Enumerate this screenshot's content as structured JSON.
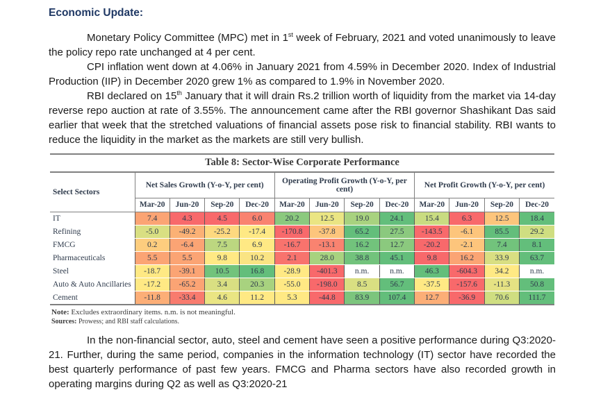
{
  "page": {
    "heading": "Economic Update:",
    "paragraphs": {
      "p1_pre": "Monetary Policy Committee (MPC) met in 1",
      "p1_sup": "st",
      "p1_post": " week of February, 2021 and voted unanimously to leave the policy repo rate unchanged at 4 per cent.",
      "p2": "CPI inflation went down at 4.06% in January 2021 from 4.59% in December 2020. Index of Industrial Production (IIP) in December 2020 grew 1% as compared to 1.9% in November 2020.",
      "p3_pre": "RBI declared on 15",
      "p3_sup": "th",
      "p3_post": " January that it will drain Rs.2 trillion worth of liquidity from the market via 14-day reverse repo auction at rate of 3.55%. The announcement came after the RBI governor Shashikant Das said earlier that week that the stretched valuations of financial assets pose risk to financial stability. RBI wants to reduce the liquidity in the market as the markets are still very bullish.",
      "p4": "In the non-financial sector, auto, steel and cement have seen a positive performance during Q3:2020-21. Further, during the same period, companies in the information technology (IT) sector have recorded the best quarterly performance of past few years. FMCG and Pharma sectors have also recorded growth in operating margins during Q2 as well as Q3:2020-21"
    }
  },
  "table": {
    "title": "Table 8: Sector-Wise Corporate Performance",
    "corner_label": "Select Sectors",
    "groups": [
      "Net Sales Growth (Y-o-Y, per cent)",
      "Operating Profit Growth (Y-o-Y, per cent)",
      "Net Profit Growth (Y-o-Y, per cent)"
    ],
    "quarters": [
      "Mar-20",
      "Jun-20",
      "Sep-20",
      "Dec-20"
    ],
    "rows": [
      {
        "label": "IT",
        "cells": [
          {
            "v": "7.4",
            "c": "#FBA474"
          },
          {
            "v": "4.3",
            "c": "#F8696B"
          },
          {
            "v": "4.5",
            "c": "#F8696B"
          },
          {
            "v": "6.0",
            "c": "#F98370"
          },
          {
            "v": "20.2",
            "c": "#8BC97E"
          },
          {
            "v": "12.5",
            "c": "#EAE583"
          },
          {
            "v": "19.0",
            "c": "#A8D27F"
          },
          {
            "v": "24.1",
            "c": "#63BE7B"
          },
          {
            "v": "15.4",
            "c": "#C9DC81"
          },
          {
            "v": "6.3",
            "c": "#F8696B"
          },
          {
            "v": "12.5",
            "c": "#FDC57C"
          },
          {
            "v": "18.4",
            "c": "#63BE7B"
          }
        ]
      },
      {
        "label": "Refining",
        "cells": [
          {
            "v": "-5.0",
            "c": "#D9DF82"
          },
          {
            "v": "-49.2",
            "c": "#FBB175"
          },
          {
            "v": "-25.2",
            "c": "#FDD97F"
          },
          {
            "v": "-17.4",
            "c": "#FFE984"
          },
          {
            "v": "-170.8",
            "c": "#F8696B"
          },
          {
            "v": "-37.8",
            "c": "#FDC57C"
          },
          {
            "v": "65.2",
            "c": "#63BE7B"
          },
          {
            "v": "27.5",
            "c": "#8BC97E"
          },
          {
            "v": "-143.5",
            "c": "#F8696B"
          },
          {
            "v": "-6.1",
            "c": "#FDC57C"
          },
          {
            "v": "85.5",
            "c": "#63BE7B"
          },
          {
            "v": "29.2",
            "c": "#CFDE81"
          }
        ]
      },
      {
        "label": "FMCG",
        "cells": [
          {
            "v": "0.2",
            "c": "#FDCD7E"
          },
          {
            "v": "-6.4",
            "c": "#FBA474"
          },
          {
            "v": "7.5",
            "c": "#BCD780"
          },
          {
            "v": "6.9",
            "c": "#FFE984"
          },
          {
            "v": "-16.7",
            "c": "#F8736D"
          },
          {
            "v": "-13.1",
            "c": "#F98370"
          },
          {
            "v": "16.2",
            "c": "#72C37C"
          },
          {
            "v": "12.7",
            "c": "#8BC97E"
          },
          {
            "v": "-20.2",
            "c": "#F8696B"
          },
          {
            "v": "-2.1",
            "c": "#FDC57C"
          },
          {
            "v": "7.4",
            "c": "#72C37C"
          },
          {
            "v": "8.1",
            "c": "#63BE7B"
          }
        ]
      },
      {
        "label": "Pharmaceuticals",
        "cells": [
          {
            "v": "5.5",
            "c": "#FBA474"
          },
          {
            "v": "5.5",
            "c": "#FBA474"
          },
          {
            "v": "9.8",
            "c": "#FFE984"
          },
          {
            "v": "10.2",
            "c": "#FAE483"
          },
          {
            "v": "2.1",
            "c": "#F8736D"
          },
          {
            "v": "28.0",
            "c": "#A8D27F"
          },
          {
            "v": "38.8",
            "c": "#72C37C"
          },
          {
            "v": "45.1",
            "c": "#63BE7B"
          },
          {
            "v": "9.8",
            "c": "#F8696B"
          },
          {
            "v": "16.2",
            "c": "#FBA474"
          },
          {
            "v": "33.9",
            "c": "#D9DF82"
          },
          {
            "v": "63.7",
            "c": "#63BE7B"
          }
        ]
      },
      {
        "label": "Steel",
        "cells": [
          {
            "v": "-18.7",
            "c": "#FFE984"
          },
          {
            "v": "-39.1",
            "c": "#FBA474"
          },
          {
            "v": "10.5",
            "c": "#72C37C"
          },
          {
            "v": "16.8",
            "c": "#63BE7B"
          },
          {
            "v": "-28.9",
            "c": "#FFE984"
          },
          {
            "v": "-401.3",
            "c": "#F8696B"
          },
          {
            "v": "n.m.",
            "c": "#FFFFFF"
          },
          {
            "v": "n.m.",
            "c": "#FFFFFF"
          },
          {
            "v": "46.3",
            "c": "#63BE7B"
          },
          {
            "v": "-604.3",
            "c": "#F8696B"
          },
          {
            "v": "34.2",
            "c": "#FFE984"
          },
          {
            "v": "n.m.",
            "c": "#FFFFFF"
          }
        ]
      },
      {
        "label": "Auto & Auto Ancillaries",
        "cells": [
          {
            "v": "-17.2",
            "c": "#FFE984"
          },
          {
            "v": "-65.2",
            "c": "#FBA474"
          },
          {
            "v": "3.4",
            "c": "#D9DF82"
          },
          {
            "v": "20.3",
            "c": "#A8D27F"
          },
          {
            "v": "-55.0",
            "c": "#FFE984"
          },
          {
            "v": "-198.0",
            "c": "#F8696B"
          },
          {
            "v": "8.5",
            "c": "#D9DF82"
          },
          {
            "v": "56.7",
            "c": "#63BE7B"
          },
          {
            "v": "-37.5",
            "c": "#FFE984"
          },
          {
            "v": "-157.6",
            "c": "#F8696B"
          },
          {
            "v": "-11.3",
            "c": "#E5E283"
          },
          {
            "v": "50.8",
            "c": "#63BE7B"
          }
        ]
      },
      {
        "label": "Cement",
        "cells": [
          {
            "v": "-11.8",
            "c": "#FCAE77"
          },
          {
            "v": "-33.4",
            "c": "#F87B6E"
          },
          {
            "v": "4.6",
            "c": "#EAE583"
          },
          {
            "v": "11.2",
            "c": "#FFE984"
          },
          {
            "v": "5.3",
            "c": "#FFE984"
          },
          {
            "v": "-44.8",
            "c": "#F8696B"
          },
          {
            "v": "83.9",
            "c": "#7CC57D"
          },
          {
            "v": "107.4",
            "c": "#63BE7B"
          },
          {
            "v": "12.7",
            "c": "#FCAE77"
          },
          {
            "v": "-36.9",
            "c": "#F8696B"
          },
          {
            "v": "70.6",
            "c": "#CFDE81"
          },
          {
            "v": "111.7",
            "c": "#63BE7B"
          }
        ]
      }
    ],
    "note_label": "Note:",
    "note_text": " Excludes extraordinary items. n.m. is not meaningful.",
    "sources_label": "Sources:",
    "sources_text": " Prowess; and RBI staff calculations."
  }
}
